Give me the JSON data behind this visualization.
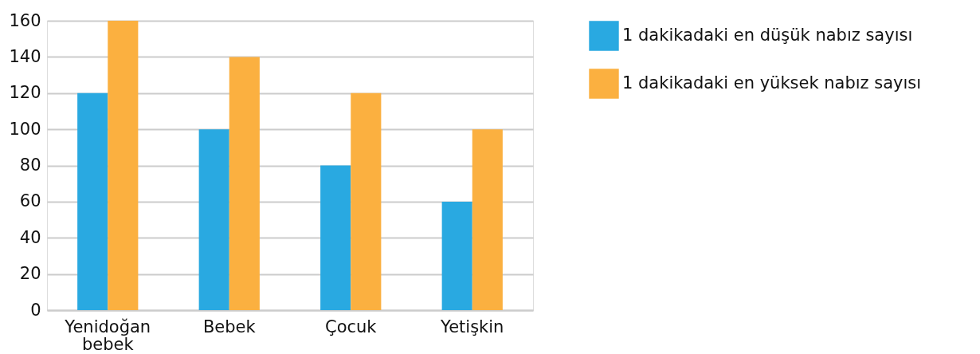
{
  "chart_data": {
    "type": "bar",
    "categories": [
      "Yenidoğan bebek",
      "Bebek",
      "Çocuk",
      "Yetişkin"
    ],
    "series": [
      {
        "name": "1 dakikadaki en düşük nabız sayısı",
        "color": "#29a9e1",
        "values": [
          120,
          100,
          80,
          60
        ]
      },
      {
        "name": "1 dakikadaki en yüksek nabız sayısı",
        "color": "#fbb040",
        "values": [
          160,
          140,
          120,
          100
        ]
      }
    ],
    "ylim": [
      0,
      160
    ],
    "yticks": [
      0,
      20,
      40,
      60,
      80,
      100,
      120,
      140,
      160
    ],
    "grid": "y",
    "legend": "right"
  }
}
